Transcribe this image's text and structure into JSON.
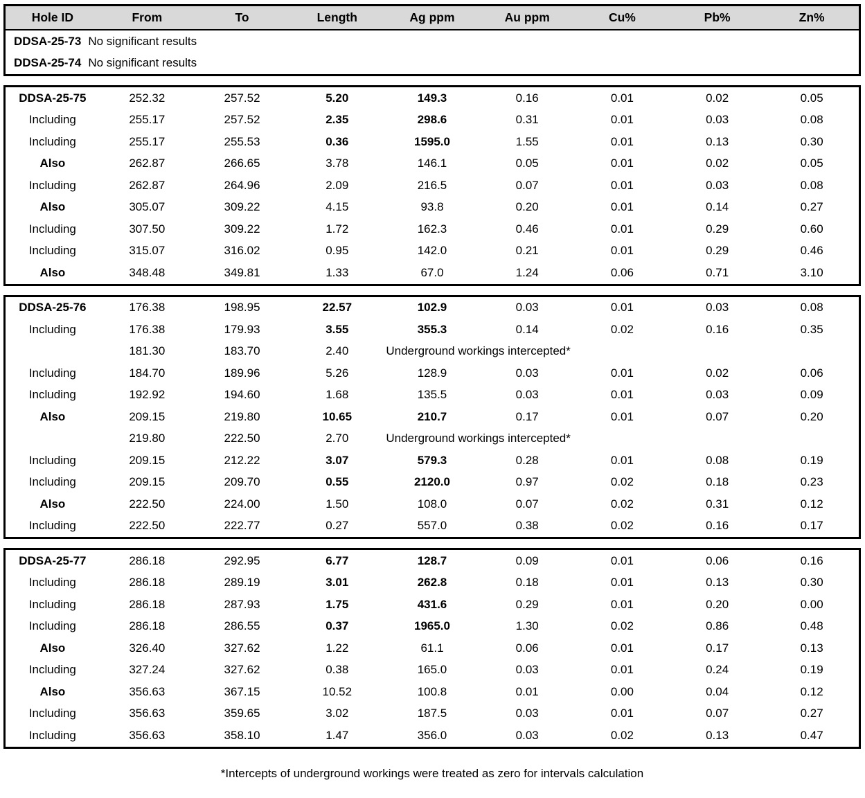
{
  "table": {
    "headers": [
      "Hole ID",
      "From",
      "To",
      "Length",
      "Ag ppm",
      "Au ppm",
      "Cu%",
      "Pb%",
      "Zn%"
    ],
    "no_result_rows": [
      {
        "hole": "DDSA-25-73",
        "note": "No significant results"
      },
      {
        "hole": "DDSA-25-74",
        "note": "No significant results"
      }
    ],
    "sections": [
      {
        "rows": [
          {
            "label": "DDSA-25-75",
            "label_bold": true,
            "from": "252.32",
            "to": "257.52",
            "length": "5.20",
            "length_bold": true,
            "ag": "149.3",
            "ag_bold": true,
            "au": "0.16",
            "cu": "0.01",
            "pb": "0.02",
            "zn": "0.05"
          },
          {
            "label": "Including",
            "label_bold": false,
            "from": "255.17",
            "to": "257.52",
            "length": "2.35",
            "length_bold": true,
            "ag": "298.6",
            "ag_bold": true,
            "au": "0.31",
            "cu": "0.01",
            "pb": "0.03",
            "zn": "0.08"
          },
          {
            "label": "Including",
            "label_bold": false,
            "from": "255.17",
            "to": "255.53",
            "length": "0.36",
            "length_bold": true,
            "ag": "1595.0",
            "ag_bold": true,
            "au": "1.55",
            "cu": "0.01",
            "pb": "0.13",
            "zn": "0.30"
          },
          {
            "label": "Also",
            "label_bold": true,
            "from": "262.87",
            "to": "266.65",
            "length": "3.78",
            "length_bold": false,
            "ag": "146.1",
            "ag_bold": false,
            "au": "0.05",
            "cu": "0.01",
            "pb": "0.02",
            "zn": "0.05"
          },
          {
            "label": "Including",
            "label_bold": false,
            "from": "262.87",
            "to": "264.96",
            "length": "2.09",
            "length_bold": false,
            "ag": "216.5",
            "ag_bold": false,
            "au": "0.07",
            "cu": "0.01",
            "pb": "0.03",
            "zn": "0.08"
          },
          {
            "label": "Also",
            "label_bold": true,
            "from": "305.07",
            "to": "309.22",
            "length": "4.15",
            "length_bold": false,
            "ag": "93.8",
            "ag_bold": false,
            "au": "0.20",
            "cu": "0.01",
            "pb": "0.14",
            "zn": "0.27"
          },
          {
            "label": "Including",
            "label_bold": false,
            "from": "307.50",
            "to": "309.22",
            "length": "1.72",
            "length_bold": false,
            "ag": "162.3",
            "ag_bold": false,
            "au": "0.46",
            "cu": "0.01",
            "pb": "0.29",
            "zn": "0.60"
          },
          {
            "label": "Including",
            "label_bold": false,
            "from": "315.07",
            "to": "316.02",
            "length": "0.95",
            "length_bold": false,
            "ag": "142.0",
            "ag_bold": false,
            "au": "0.21",
            "cu": "0.01",
            "pb": "0.29",
            "zn": "0.46"
          },
          {
            "label": "Also",
            "label_bold": true,
            "from": "348.48",
            "to": "349.81",
            "length": "1.33",
            "length_bold": false,
            "ag": "67.0",
            "ag_bold": false,
            "au": "1.24",
            "cu": "0.06",
            "pb": "0.71",
            "zn": "3.10"
          }
        ]
      },
      {
        "rows": [
          {
            "label": "DDSA-25-76",
            "label_bold": true,
            "from": "176.38",
            "to": "198.95",
            "length": "22.57",
            "length_bold": true,
            "ag": "102.9",
            "ag_bold": true,
            "au": "0.03",
            "cu": "0.01",
            "pb": "0.03",
            "zn": "0.08"
          },
          {
            "label": "Including",
            "label_bold": false,
            "from": "176.38",
            "to": "179.93",
            "length": "3.55",
            "length_bold": true,
            "ag": "355.3",
            "ag_bold": true,
            "au": "0.14",
            "cu": "0.02",
            "pb": "0.16",
            "zn": "0.35"
          },
          {
            "label": "",
            "label_bold": false,
            "from": "181.30",
            "to": "183.70",
            "length": "2.40",
            "length_bold": false,
            "merged_note": "Underground workings intercepted*"
          },
          {
            "label": "Including",
            "label_bold": false,
            "from": "184.70",
            "to": "189.96",
            "length": "5.26",
            "length_bold": false,
            "ag": "128.9",
            "ag_bold": false,
            "au": "0.03",
            "cu": "0.01",
            "pb": "0.02",
            "zn": "0.06"
          },
          {
            "label": "Including",
            "label_bold": false,
            "from": "192.92",
            "to": "194.60",
            "length": "1.68",
            "length_bold": false,
            "ag": "135.5",
            "ag_bold": false,
            "au": "0.03",
            "cu": "0.01",
            "pb": "0.03",
            "zn": "0.09"
          },
          {
            "label": "Also",
            "label_bold": true,
            "from": "209.15",
            "to": "219.80",
            "length": "10.65",
            "length_bold": true,
            "ag": "210.7",
            "ag_bold": true,
            "au": "0.17",
            "cu": "0.01",
            "pb": "0.07",
            "zn": "0.20"
          },
          {
            "label": "",
            "label_bold": false,
            "from": "219.80",
            "to": "222.50",
            "length": "2.70",
            "length_bold": false,
            "merged_note": "Underground workings intercepted*"
          },
          {
            "label": "Including",
            "label_bold": false,
            "from": "209.15",
            "to": "212.22",
            "length": "3.07",
            "length_bold": true,
            "ag": "579.3",
            "ag_bold": true,
            "au": "0.28",
            "cu": "0.01",
            "pb": "0.08",
            "zn": "0.19"
          },
          {
            "label": "Including",
            "label_bold": false,
            "from": "209.15",
            "to": "209.70",
            "length": "0.55",
            "length_bold": true,
            "ag": "2120.0",
            "ag_bold": true,
            "au": "0.97",
            "cu": "0.02",
            "pb": "0.18",
            "zn": "0.23"
          },
          {
            "label": "Also",
            "label_bold": true,
            "from": "222.50",
            "to": "224.00",
            "length": "1.50",
            "length_bold": false,
            "ag": "108.0",
            "ag_bold": false,
            "au": "0.07",
            "cu": "0.02",
            "pb": "0.31",
            "zn": "0.12"
          },
          {
            "label": "Including",
            "label_bold": false,
            "from": "222.50",
            "to": "222.77",
            "length": "0.27",
            "length_bold": false,
            "ag": "557.0",
            "ag_bold": false,
            "au": "0.38",
            "cu": "0.02",
            "pb": "0.16",
            "zn": "0.17"
          }
        ]
      },
      {
        "rows": [
          {
            "label": "DDSA-25-77",
            "label_bold": true,
            "from": "286.18",
            "to": "292.95",
            "length": "6.77",
            "length_bold": true,
            "ag": "128.7",
            "ag_bold": true,
            "au": "0.09",
            "cu": "0.01",
            "pb": "0.06",
            "zn": "0.16"
          },
          {
            "label": "Including",
            "label_bold": false,
            "from": "286.18",
            "to": "289.19",
            "length": "3.01",
            "length_bold": true,
            "ag": "262.8",
            "ag_bold": true,
            "au": "0.18",
            "cu": "0.01",
            "pb": "0.13",
            "zn": "0.30"
          },
          {
            "label": "Including",
            "label_bold": false,
            "from": "286.18",
            "to": "287.93",
            "length": "1.75",
            "length_bold": true,
            "ag": "431.6",
            "ag_bold": true,
            "au": "0.29",
            "cu": "0.01",
            "pb": "0.20",
            "zn": "0.00"
          },
          {
            "label": "Including",
            "label_bold": false,
            "from": "286.18",
            "to": "286.55",
            "length": "0.37",
            "length_bold": true,
            "ag": "1965.0",
            "ag_bold": true,
            "au": "1.30",
            "cu": "0.02",
            "pb": "0.86",
            "zn": "0.48"
          },
          {
            "label": "Also",
            "label_bold": true,
            "from": "326.40",
            "to": "327.62",
            "length": "1.22",
            "length_bold": false,
            "ag": "61.1",
            "ag_bold": false,
            "au": "0.06",
            "cu": "0.01",
            "pb": "0.17",
            "zn": "0.13"
          },
          {
            "label": "Including",
            "label_bold": false,
            "from": "327.24",
            "to": "327.62",
            "length": "0.38",
            "length_bold": false,
            "ag": "165.0",
            "ag_bold": false,
            "au": "0.03",
            "cu": "0.01",
            "pb": "0.24",
            "zn": "0.19"
          },
          {
            "label": "Also",
            "label_bold": true,
            "from": "356.63",
            "to": "367.15",
            "length": "10.52",
            "length_bold": false,
            "ag": "100.8",
            "ag_bold": false,
            "au": "0.01",
            "cu": "0.00",
            "pb": "0.04",
            "zn": "0.12"
          },
          {
            "label": "Including",
            "label_bold": false,
            "from": "356.63",
            "to": "359.65",
            "length": "3.02",
            "length_bold": false,
            "ag": "187.5",
            "ag_bold": false,
            "au": "0.03",
            "cu": "0.01",
            "pb": "0.07",
            "zn": "0.27"
          },
          {
            "label": "Including",
            "label_bold": false,
            "from": "356.63",
            "to": "358.10",
            "length": "1.47",
            "length_bold": false,
            "ag": "356.0",
            "ag_bold": false,
            "au": "0.03",
            "cu": "0.02",
            "pb": "0.13",
            "zn": "0.47"
          }
        ]
      }
    ]
  },
  "footnote": "*Intercepts of underground workings were treated as zero for intervals calculation",
  "colors": {
    "header_bg": "#d9d9d9",
    "border": "#000000",
    "text": "#000000"
  }
}
